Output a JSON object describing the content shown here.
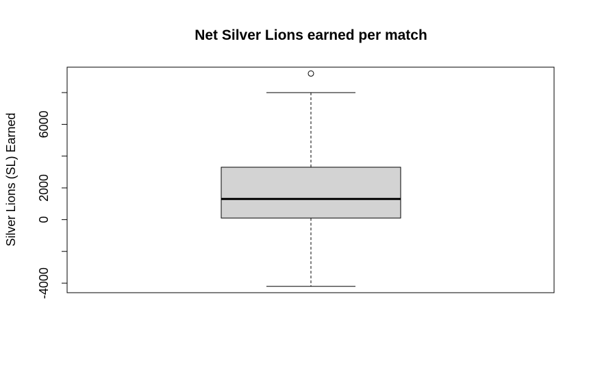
{
  "chart_data": {
    "type": "boxplot",
    "title": "Net Silver Lions earned per match",
    "xlabel": "",
    "ylabel": "Silver Lions (SL) Earned",
    "ylim": [
      -4600,
      9600
    ],
    "yticks": [
      -4000,
      -2000,
      0,
      2000,
      4000,
      6000,
      8000
    ],
    "ytick_labels": [
      "-4000",
      "",
      "0",
      "2000",
      "",
      "6000",
      ""
    ],
    "box": {
      "min": -4200,
      "q1": 100,
      "median": 1300,
      "q3": 3300,
      "max": 8000,
      "outliers": [
        9200
      ]
    },
    "colors": {
      "box_fill": "#d3d3d3",
      "line": "#000000"
    }
  }
}
